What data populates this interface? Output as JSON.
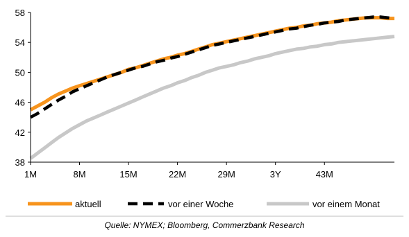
{
  "chart_data": {
    "type": "line",
    "x_tick_labels": [
      "1M",
      "8M",
      "15M",
      "22M",
      "29M",
      "3Y",
      "43M"
    ],
    "x_tick_values": [
      1,
      8,
      15,
      22,
      29,
      36,
      43
    ],
    "xlim": [
      1,
      53
    ],
    "ylim": [
      38,
      58
    ],
    "y_ticks": [
      38,
      42,
      46,
      50,
      54,
      58
    ],
    "grid": false,
    "legend_position": "bottom",
    "series": [
      {
        "name": "aktuell",
        "color": "#f7941d",
        "style": "solid",
        "x": [
          1,
          2,
          3,
          4,
          5,
          6,
          7,
          8,
          9,
          10,
          11,
          12,
          13,
          14,
          15,
          16,
          17,
          18,
          19,
          20,
          21,
          22,
          23,
          24,
          25,
          26,
          27,
          28,
          29,
          30,
          31,
          32,
          33,
          34,
          35,
          36,
          37,
          38,
          39,
          40,
          41,
          42,
          43,
          44,
          45,
          46,
          47,
          48,
          49,
          50,
          51,
          52,
          53
        ],
        "values": [
          45.0,
          45.5,
          46.0,
          46.6,
          47.1,
          47.5,
          47.9,
          48.2,
          48.5,
          48.8,
          49.1,
          49.4,
          49.7,
          50.0,
          50.4,
          50.6,
          50.9,
          51.2,
          51.5,
          51.8,
          52.0,
          52.3,
          52.5,
          52.8,
          53.1,
          53.4,
          53.7,
          53.9,
          54.1,
          54.3,
          54.5,
          54.7,
          54.9,
          55.1,
          55.3,
          55.5,
          55.7,
          55.9,
          56.0,
          56.2,
          56.3,
          56.5,
          56.6,
          56.7,
          56.9,
          57.0,
          57.1,
          57.2,
          57.3,
          57.3,
          57.3,
          57.2,
          57.2
        ]
      },
      {
        "name": "vor einer Woche",
        "color": "#000000",
        "style": "dashed",
        "x": [
          1,
          2,
          3,
          4,
          5,
          6,
          7,
          8,
          9,
          10,
          11,
          12,
          13,
          14,
          15,
          16,
          17,
          18,
          19,
          20,
          21,
          22,
          23,
          24,
          25,
          26,
          27,
          28,
          29,
          30,
          31,
          32,
          33,
          34,
          35,
          36,
          37,
          38,
          39,
          40,
          41,
          42,
          43,
          44,
          45,
          46,
          47,
          48,
          49,
          50,
          51,
          52,
          53
        ],
        "values": [
          44.0,
          44.5,
          45.1,
          45.7,
          46.3,
          46.8,
          47.4,
          47.8,
          48.2,
          48.6,
          49.0,
          49.4,
          49.7,
          50.0,
          50.3,
          50.6,
          50.8,
          51.1,
          51.4,
          51.6,
          51.9,
          52.1,
          52.4,
          52.7,
          53.0,
          53.3,
          53.6,
          53.8,
          54.0,
          54.2,
          54.4,
          54.6,
          54.8,
          55.0,
          55.2,
          55.4,
          55.6,
          55.8,
          55.9,
          56.1,
          56.3,
          56.4,
          56.6,
          56.7,
          56.8,
          57.0,
          57.1,
          57.2,
          57.3,
          57.4,
          57.4,
          57.3,
          57.2
        ]
      },
      {
        "name": "vor einem Monat",
        "color": "#c8c8c8",
        "style": "solid",
        "x": [
          1,
          2,
          3,
          4,
          5,
          6,
          7,
          8,
          9,
          10,
          11,
          12,
          13,
          14,
          15,
          16,
          17,
          18,
          19,
          20,
          21,
          22,
          23,
          24,
          25,
          26,
          27,
          28,
          29,
          30,
          31,
          32,
          33,
          34,
          35,
          36,
          37,
          38,
          39,
          40,
          41,
          42,
          43,
          44,
          45,
          46,
          47,
          48,
          49,
          50,
          51,
          52,
          53
        ],
        "values": [
          38.5,
          39.2,
          39.9,
          40.6,
          41.3,
          41.9,
          42.5,
          43.0,
          43.5,
          43.9,
          44.3,
          44.7,
          45.1,
          45.5,
          45.9,
          46.3,
          46.7,
          47.1,
          47.5,
          47.9,
          48.2,
          48.6,
          48.9,
          49.3,
          49.6,
          50.0,
          50.3,
          50.6,
          50.8,
          51.0,
          51.3,
          51.5,
          51.8,
          52.0,
          52.2,
          52.5,
          52.7,
          52.9,
          53.1,
          53.2,
          53.4,
          53.5,
          53.7,
          53.8,
          54.0,
          54.1,
          54.2,
          54.3,
          54.4,
          54.5,
          54.6,
          54.7,
          54.8
        ]
      }
    ]
  },
  "source_text": "Quelle: NYMEX; Bloomberg, Commerzbank Research"
}
